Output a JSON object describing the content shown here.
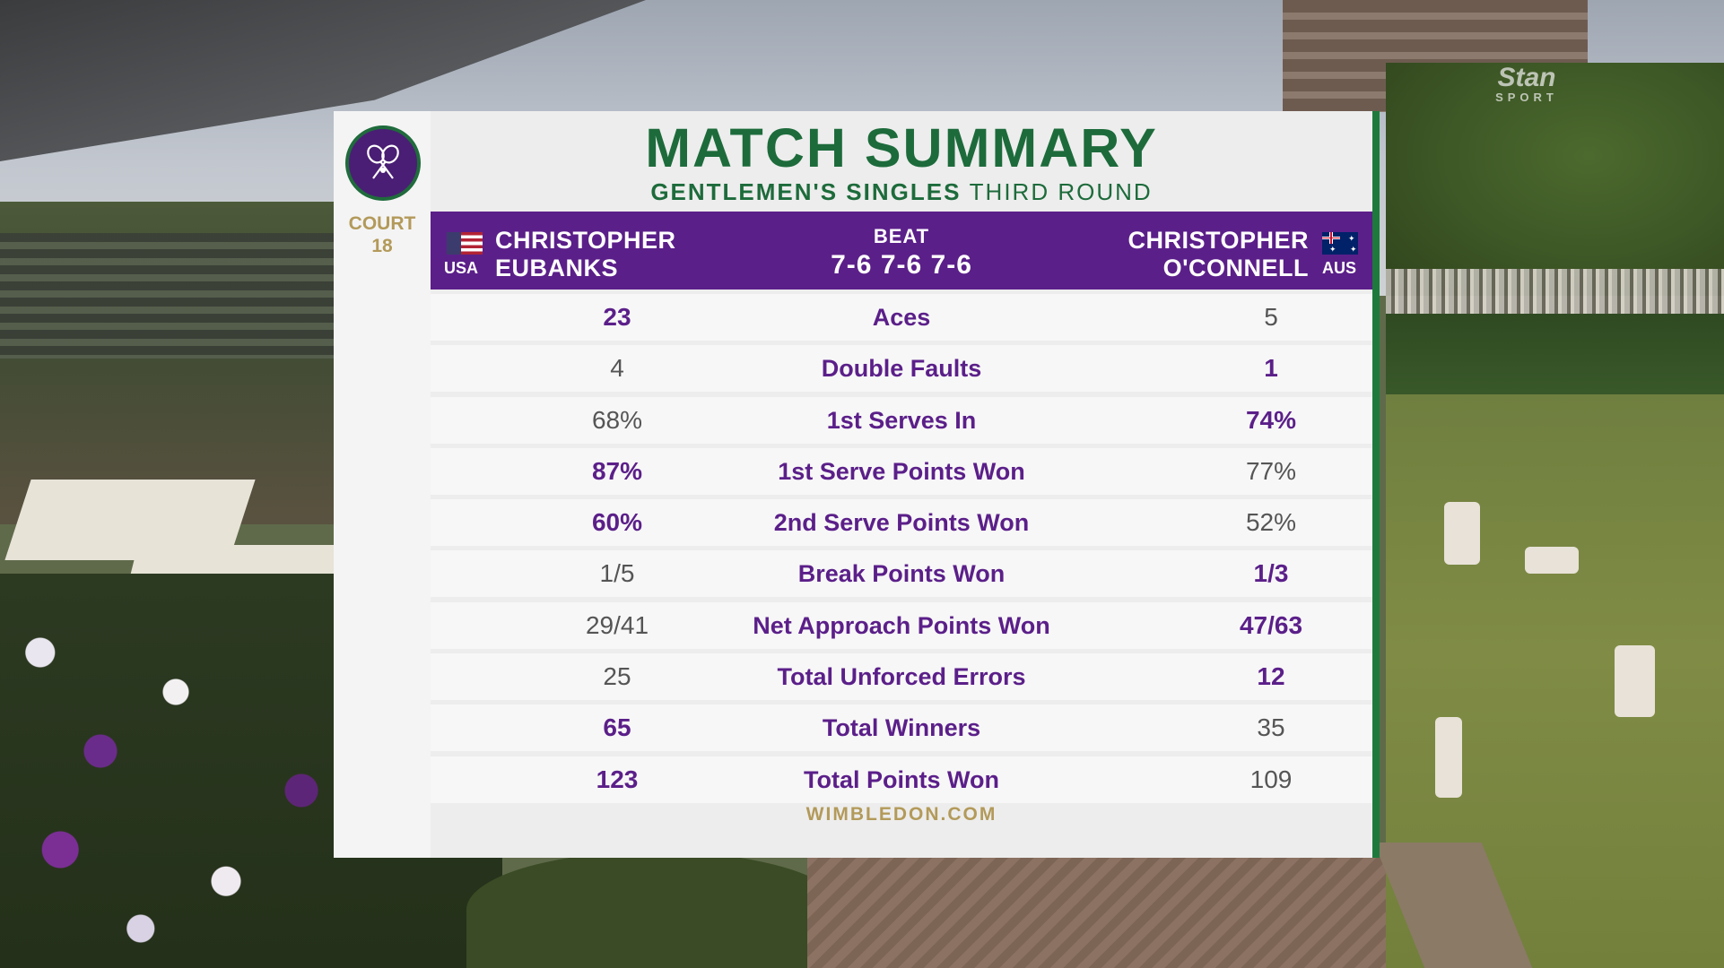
{
  "broadcaster": {
    "brand": "Stan",
    "sub": "SPORT"
  },
  "scoreboard": {
    "logo": "The Championships Wimbledon crossed-rackets logo",
    "court_label": "COURT",
    "court_number": "18",
    "title": "MATCH SUMMARY",
    "subtitle_bold": "GENTLEMEN'S SINGLES",
    "subtitle_light": "THIRD ROUND",
    "player1": {
      "first": "CHRISTOPHER",
      "last": "EUBANKS",
      "country": "USA",
      "flag": "us-flag-icon"
    },
    "player2": {
      "first": "CHRISTOPHER",
      "last": "O'CONNELL",
      "country": "AUS",
      "flag": "au-flag-icon"
    },
    "result_word": "BEAT",
    "score": "7-6 7-6 7-6",
    "stats": [
      {
        "label": "Aces",
        "p1": "23",
        "p2": "5",
        "leader": 1
      },
      {
        "label": "Double Faults",
        "p1": "4",
        "p2": "1",
        "leader": 2
      },
      {
        "label": "1st Serves In",
        "p1": "68%",
        "p2": "74%",
        "leader": 2
      },
      {
        "label": "1st Serve Points Won",
        "p1": "87%",
        "p2": "77%",
        "leader": 1
      },
      {
        "label": "2nd Serve Points Won",
        "p1": "60%",
        "p2": "52%",
        "leader": 1
      },
      {
        "label": "Break Points Won",
        "p1": "1/5",
        "p2": "1/3",
        "leader": 2
      },
      {
        "label": "Net Approach Points Won",
        "p1": "29/41",
        "p2": "47/63",
        "leader": 2
      },
      {
        "label": "Total Unforced Errors",
        "p1": "25",
        "p2": "12",
        "leader": 2
      },
      {
        "label": "Total Winners",
        "p1": "65",
        "p2": "35",
        "leader": 1
      },
      {
        "label": "Total Points Won",
        "p1": "123",
        "p2": "109",
        "leader": 1
      }
    ],
    "footer": "WIMBLEDON.COM",
    "colors": {
      "purple": "#5b1f89",
      "green": "#1d6b3b",
      "gold": "#b39a5a"
    }
  }
}
